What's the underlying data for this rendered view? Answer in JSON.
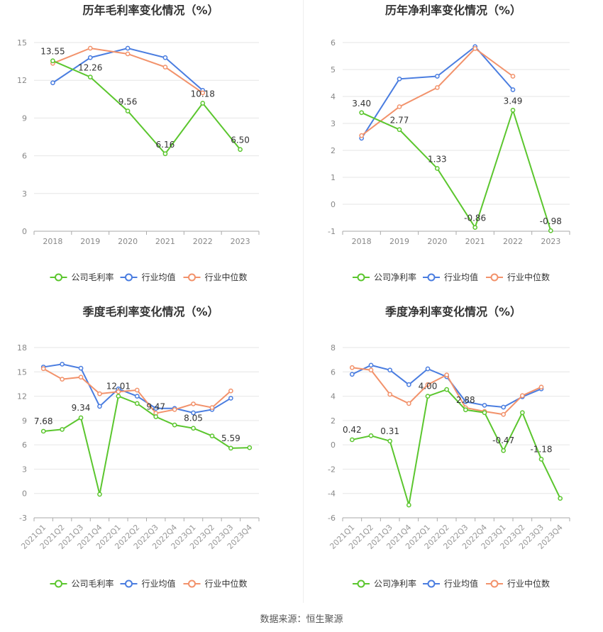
{
  "source_text": "数据来源：恒生聚源",
  "colors": {
    "company": "#5bc62e",
    "industry_avg": "#4a7de0",
    "industry_median": "#f2926b",
    "grid": "#e6e6e6",
    "axis": "#999999"
  },
  "chart_data": [
    {
      "type": "line",
      "title": "历年毛利率变化情况（%）",
      "categories": [
        "2018",
        "2019",
        "2020",
        "2021",
        "2022",
        "2023"
      ],
      "ylim": [
        0,
        15
      ],
      "yticks": [
        0,
        3,
        6,
        9,
        12,
        15
      ],
      "legend_position": "bottom",
      "series": [
        {
          "name": "公司毛利率",
          "color": "#5bc62e",
          "values": [
            13.55,
            12.26,
            9.56,
            6.16,
            10.18,
            6.5
          ],
          "labels": [
            "13.55",
            "12.26",
            "9.56",
            "6.16",
            "10.18",
            "6.50"
          ]
        },
        {
          "name": "行业均值",
          "color": "#4a7de0",
          "values": [
            11.8,
            13.8,
            14.55,
            13.8,
            11.2,
            null
          ]
        },
        {
          "name": "行业中位数",
          "color": "#f2926b",
          "values": [
            13.35,
            14.55,
            14.1,
            13.05,
            11.0,
            null
          ]
        }
      ]
    },
    {
      "type": "line",
      "title": "历年净利率变化情况（%）",
      "categories": [
        "2018",
        "2019",
        "2020",
        "2021",
        "2022",
        "2023"
      ],
      "ylim": [
        -1,
        6
      ],
      "yticks": [
        -1,
        0,
        1,
        2,
        3,
        4,
        5,
        6
      ],
      "legend_position": "bottom",
      "series": [
        {
          "name": "公司净利率",
          "color": "#5bc62e",
          "values": [
            3.4,
            2.77,
            1.33,
            -0.86,
            3.49,
            -0.98
          ],
          "labels": [
            "3.40",
            "2.77",
            "1.33",
            "-0.86",
            "3.49",
            "-0.98"
          ]
        },
        {
          "name": "行业均值",
          "color": "#4a7de0",
          "values": [
            2.45,
            4.65,
            4.75,
            5.85,
            4.25,
            null
          ]
        },
        {
          "name": "行业中位数",
          "color": "#f2926b",
          "values": [
            2.55,
            3.62,
            4.33,
            5.78,
            4.75,
            null
          ]
        }
      ]
    },
    {
      "type": "line",
      "title": "季度毛利率变化情况（%）",
      "categories": [
        "2021Q1",
        "2021Q2",
        "2021Q3",
        "2021Q4",
        "2022Q1",
        "2022Q2",
        "2022Q3",
        "2022Q4",
        "2023Q1",
        "2023Q2",
        "2023Q3",
        "2023Q4"
      ],
      "ylim": [
        -3,
        18
      ],
      "yticks": [
        -3,
        0,
        3,
        6,
        9,
        12,
        15,
        18
      ],
      "legend_position": "bottom",
      "series": [
        {
          "name": "公司毛利率",
          "color": "#5bc62e",
          "values": [
            7.68,
            7.9,
            9.34,
            -0.1,
            12.01,
            11.1,
            9.47,
            8.45,
            8.05,
            7.1,
            5.59,
            5.65
          ],
          "labels": [
            "7.68",
            "",
            "9.34",
            "",
            "12.01",
            "",
            "9.47",
            "",
            "8.05",
            "",
            "5.59",
            ""
          ]
        },
        {
          "name": "行业均值",
          "color": "#4a7de0",
          "values": [
            15.6,
            15.95,
            15.45,
            10.75,
            12.9,
            12.0,
            10.5,
            10.5,
            9.95,
            10.35,
            11.75,
            null
          ]
        },
        {
          "name": "行业中位数",
          "color": "#f2926b",
          "values": [
            15.4,
            14.1,
            14.35,
            12.3,
            12.55,
            12.75,
            9.9,
            10.35,
            11.05,
            10.6,
            12.65,
            null
          ]
        }
      ]
    },
    {
      "type": "line",
      "title": "季度净利率变化情况（%）",
      "categories": [
        "2021Q1",
        "2021Q2",
        "2021Q3",
        "2021Q4",
        "2022Q1",
        "2022Q2",
        "2022Q3",
        "2022Q4",
        "2023Q1",
        "2023Q2",
        "2023Q3",
        "2023Q4"
      ],
      "ylim": [
        -6,
        8
      ],
      "yticks": [
        -6,
        -4,
        -2,
        0,
        2,
        4,
        6,
        8
      ],
      "legend_position": "bottom",
      "series": [
        {
          "name": "公司净利率",
          "color": "#5bc62e",
          "values": [
            0.42,
            0.75,
            0.31,
            -4.95,
            4.0,
            4.55,
            2.88,
            2.65,
            -0.47,
            2.65,
            -1.18,
            -4.4
          ],
          "labels": [
            "0.42",
            "",
            "0.31",
            "",
            "4.00",
            "",
            "2.88",
            "",
            "-0.47",
            "",
            "-1.18",
            ""
          ]
        },
        {
          "name": "行业均值",
          "color": "#4a7de0",
          "values": [
            5.8,
            6.55,
            6.15,
            4.95,
            6.25,
            5.6,
            3.55,
            3.25,
            3.1,
            3.95,
            4.6,
            null
          ]
        },
        {
          "name": "行业中位数",
          "color": "#f2926b",
          "values": [
            6.35,
            6.15,
            4.15,
            3.4,
            4.95,
            5.75,
            3.05,
            2.75,
            2.5,
            4.05,
            4.75,
            null
          ]
        }
      ]
    }
  ]
}
